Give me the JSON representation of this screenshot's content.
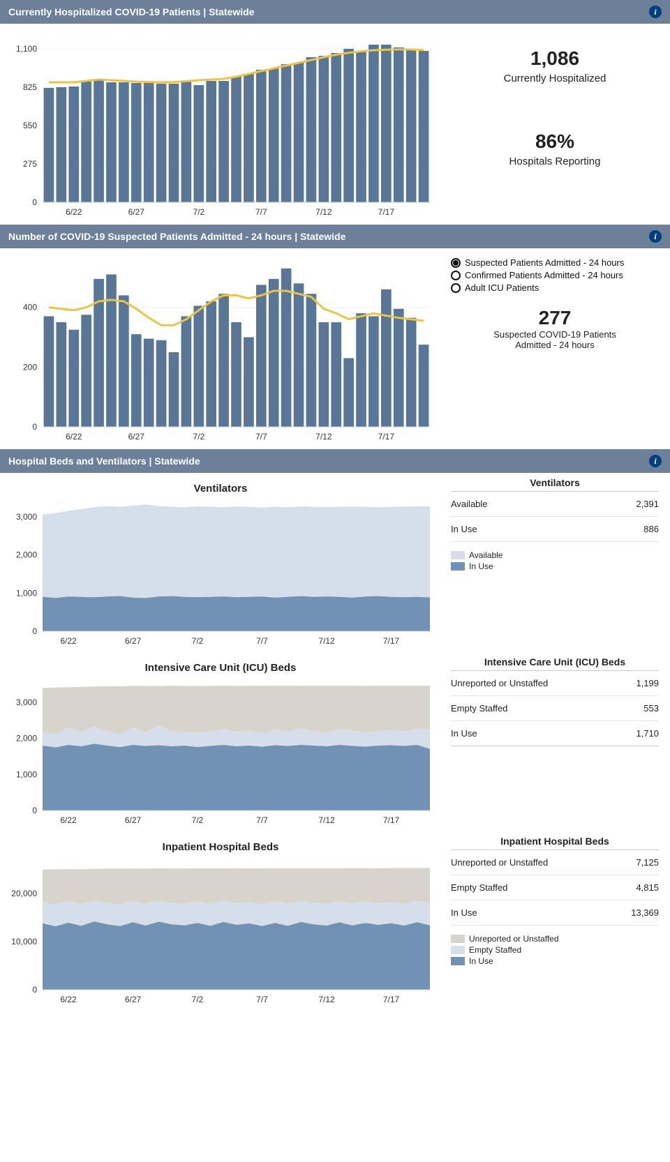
{
  "colors": {
    "header_bg": "#6d8099",
    "bar": "#5a7697",
    "trend": "#e8c547",
    "area_light": "#d5dfec",
    "area_mid": "#89a3c2",
    "area_dark": "#7191b5",
    "area_grey": "#d8d3cb"
  },
  "x_axis": {
    "labels": [
      "6/22",
      "6/27",
      "7/2",
      "7/7",
      "7/12",
      "7/17"
    ],
    "positions_idx": [
      2,
      7,
      12,
      17,
      22,
      27
    ],
    "n": 31
  },
  "panel1": {
    "title": "Currently Hospitalized COVID-19 Patients | Statewide",
    "type": "bar+line",
    "y_ticks": [
      0,
      275,
      550,
      825,
      1100
    ],
    "ylim": [
      0,
      1200
    ],
    "bars": [
      820,
      825,
      830,
      870,
      880,
      860,
      860,
      855,
      855,
      850,
      850,
      870,
      840,
      870,
      870,
      900,
      920,
      950,
      960,
      990,
      1000,
      1040,
      1050,
      1070,
      1100,
      1080,
      1130,
      1130,
      1110,
      1090,
      1085
    ],
    "trend": [
      860,
      860,
      860,
      870,
      880,
      875,
      870,
      865,
      862,
      860,
      862,
      868,
      875,
      880,
      885,
      900,
      920,
      940,
      960,
      980,
      1000,
      1020,
      1040,
      1058,
      1072,
      1082,
      1090,
      1094,
      1096,
      1095,
      1092
    ],
    "stat1_value": "1,086",
    "stat1_label": "Currently Hospitalized",
    "stat2_value": "86%",
    "stat2_label": "Hospitals Reporting"
  },
  "panel2": {
    "title": "Number of COVID-19 Suspected Patients Admitted - 24 hours | Statewide",
    "type": "bar+line",
    "y_ticks": [
      0,
      200,
      400
    ],
    "ylim": [
      0,
      560
    ],
    "bars": [
      370,
      350,
      325,
      375,
      495,
      510,
      440,
      310,
      295,
      290,
      250,
      370,
      405,
      420,
      445,
      350,
      300,
      475,
      495,
      530,
      480,
      445,
      350,
      350,
      230,
      380,
      370,
      460,
      395,
      365,
      275
    ],
    "trend": [
      400,
      395,
      390,
      400,
      420,
      425,
      420,
      395,
      365,
      340,
      340,
      360,
      390,
      420,
      440,
      440,
      430,
      440,
      455,
      455,
      445,
      435,
      395,
      380,
      360,
      370,
      380,
      372,
      365,
      360,
      355
    ],
    "radios": [
      {
        "label": "Suspected Patients Admitted - 24 hours",
        "selected": true
      },
      {
        "label": "Confirmed Patients Admitted - 24 hours",
        "selected": false
      },
      {
        "label": "Adult ICU Patients",
        "selected": false
      }
    ],
    "stat_value": "277",
    "stat_label_1": "Suspected COVID-19 Patients",
    "stat_label_2": "Admitted - 24 hours"
  },
  "panel3": {
    "title": "Hospital Beds and Ventilators | Statewide",
    "charts": [
      {
        "title": "Ventilators",
        "type": "area2",
        "y_ticks": [
          0,
          1000,
          2000,
          3000
        ],
        "ylim": [
          0,
          3400
        ],
        "series_inuse": [
          900,
          870,
          910,
          900,
          890,
          910,
          920,
          880,
          870,
          910,
          920,
          900,
          890,
          900,
          910,
          890,
          900,
          910,
          880,
          900,
          920,
          900,
          910,
          900,
          880,
          910,
          920,
          900,
          890,
          900,
          886
        ],
        "series_total": [
          3050,
          3100,
          3150,
          3200,
          3250,
          3280,
          3260,
          3290,
          3320,
          3280,
          3260,
          3250,
          3270,
          3260,
          3250,
          3270,
          3260,
          3240,
          3260,
          3250,
          3270,
          3260,
          3255,
          3260,
          3270,
          3260,
          3250,
          3260,
          3265,
          3270,
          3277
        ],
        "side_title": "Ventilators",
        "rows": [
          {
            "label": "Available",
            "value": "2,391"
          },
          {
            "label": "In Use",
            "value": "886"
          }
        ],
        "legend": [
          {
            "label": "Available",
            "color": "#d5dfec"
          },
          {
            "label": "In Use",
            "color": "#7191b5"
          }
        ]
      },
      {
        "title": "Intensive Care Unit (ICU) Beds",
        "type": "area3",
        "y_ticks": [
          0,
          1000,
          2000,
          3000
        ],
        "ylim": [
          0,
          3600
        ],
        "series_inuse": [
          1800,
          1750,
          1820,
          1780,
          1850,
          1800,
          1760,
          1820,
          1790,
          1810,
          1780,
          1800,
          1760,
          1790,
          1820,
          1780,
          1800,
          1770,
          1810,
          1790,
          1820,
          1800,
          1780,
          1820,
          1790,
          1770,
          1800,
          1810,
          1790,
          1820,
          1710
        ],
        "series_staffed": [
          2200,
          2130,
          2300,
          2190,
          2320,
          2210,
          2120,
          2300,
          2170,
          2350,
          2200,
          2180,
          2150,
          2200,
          2260,
          2180,
          2220,
          2150,
          2240,
          2200,
          2280,
          2210,
          2160,
          2250,
          2220,
          2160,
          2210,
          2240,
          2200,
          2270,
          2263
        ],
        "series_total": [
          3400,
          3410,
          3420,
          3430,
          3440,
          3450,
          3444,
          3460,
          3455,
          3450,
          3460,
          3455,
          3452,
          3458,
          3460,
          3455,
          3460,
          3458,
          3460,
          3462,
          3458,
          3462,
          3460,
          3462,
          3460,
          3458,
          3460,
          3462,
          3460,
          3462,
          3462
        ],
        "side_title": "Intensive Care Unit (ICU) Beds",
        "rows": [
          {
            "label": "Unreported or Unstaffed",
            "value": "1,199"
          },
          {
            "label": "Empty Staffed",
            "value": "553"
          },
          {
            "label": "In Use",
            "value": "1,710"
          }
        ]
      },
      {
        "title": "Inpatient Hospital Beds",
        "type": "area3",
        "y_ticks": [
          0,
          10000,
          20000
        ],
        "ylim": [
          0,
          27000
        ],
        "series_inuse": [
          13800,
          13200,
          13950,
          13300,
          14200,
          13600,
          13250,
          14050,
          13350,
          14150,
          13600,
          13400,
          13900,
          13300,
          14100,
          13500,
          13800,
          13250,
          13900,
          13300,
          14100,
          13600,
          13350,
          14000,
          13400,
          13900,
          13500,
          13850,
          13350,
          14050,
          13369
        ],
        "series_staffed": [
          18200,
          17700,
          18400,
          17850,
          18600,
          18000,
          17800,
          18450,
          17900,
          18500,
          18050,
          17900,
          18350,
          17850,
          18550,
          17950,
          18300,
          17800,
          18350,
          17850,
          18500,
          18000,
          17900,
          18400,
          17900,
          18350,
          17950,
          18320,
          17870,
          18480,
          18184
        ],
        "series_total": [
          25000,
          25050,
          25100,
          25100,
          25150,
          25200,
          25180,
          25220,
          25200,
          25250,
          25240,
          25230,
          25260,
          25240,
          25270,
          25250,
          25280,
          25260,
          25290,
          25270,
          25300,
          25280,
          25300,
          25290,
          25310,
          25300,
          25300,
          25305,
          25308,
          25309,
          25309
        ],
        "side_title": "Inpatient Hospital Beds",
        "rows": [
          {
            "label": "Unreported or Unstaffed",
            "value": "7,125"
          },
          {
            "label": "Empty Staffed",
            "value": "4,815"
          },
          {
            "label": "In Use",
            "value": "13,369"
          }
        ],
        "legend": [
          {
            "label": "Unreported or Unstaffed",
            "color": "#d8d3cb"
          },
          {
            "label": "Empty Staffed",
            "color": "#d5dfec"
          },
          {
            "label": "In Use",
            "color": "#7191b5"
          }
        ]
      }
    ]
  }
}
